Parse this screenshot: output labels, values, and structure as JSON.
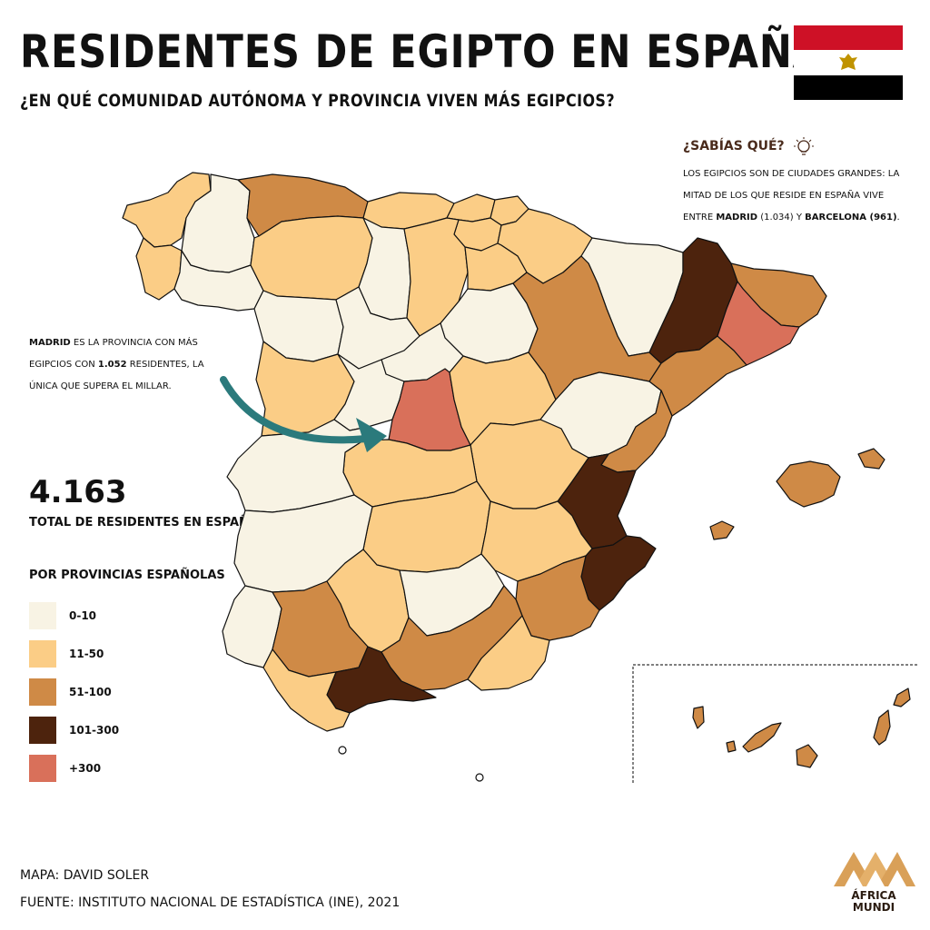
{
  "title": "RESIDENTES DE EGIPTO EN ESPAÑA",
  "subtitle": "¿EN QUÉ COMUNIDAD AUTÓNOMA Y PROVINCIA VIVEN MÁS EGIPCIOS?",
  "sabias": {
    "heading": "¿SABÍAS QUÉ?",
    "text_1": "LOS EGIPCIOS SON DE CIUDADES GRANDES: LA MITAD DE LOS QUE RESIDE EN ESPAÑA VIVE ENTRE ",
    "madrid": "MADRID",
    "madrid_value": " (1.034) Y ",
    "barcelona": "BARCELONA (961)",
    "end": "."
  },
  "madrid_note": {
    "name": "MADRID",
    "text_1": " ES LA PROVINCIA CON MÁS EGIPCIOS CON ",
    "value": "1.052",
    "text_2": " RESIDENTES, LA ÚNICA QUE SUPERA EL MILLAR."
  },
  "total": {
    "value": "4.163",
    "label": "TOTAL DE RESIDENTES EN ESPAÑA"
  },
  "legend": {
    "title": "POR PROVINCIAS ESPAÑOLAS",
    "items": [
      {
        "label": "0-10",
        "color": "#f8f3e4"
      },
      {
        "label": "11-50",
        "color": "#fbcd86"
      },
      {
        "label": "51-100",
        "color": "#cf8a46"
      },
      {
        "label": "101-300",
        "color": "#4d230d"
      },
      {
        "label": "+300",
        "color": "#d9705a"
      }
    ]
  },
  "credits": {
    "map": "MAPA: DAVID SOLER",
    "source": "FUENTE: INSTITUTO NACIONAL DE ESTADÍSTICA (INE), 2021"
  },
  "logo": {
    "line1": "ÁFRICA",
    "line2": "MUNDI"
  },
  "flag": {
    "colors": [
      "#ce1126",
      "#ffffff",
      "#000000"
    ],
    "emblem_color": "#c09300"
  },
  "arrow_color": "#2b7a7c",
  "map_data": {
    "provinces": [
      {
        "name": "A Coruña",
        "bin": "11-50"
      },
      {
        "name": "Lugo",
        "bin": "0-10"
      },
      {
        "name": "Asturias",
        "bin": "51-100"
      },
      {
        "name": "Cantabria",
        "bin": "11-50"
      },
      {
        "name": "Pontevedra",
        "bin": "11-50"
      },
      {
        "name": "Ourense",
        "bin": "0-10"
      },
      {
        "name": "León",
        "bin": "11-50"
      },
      {
        "name": "Palencia",
        "bin": "0-10"
      },
      {
        "name": "Burgos",
        "bin": "11-50"
      },
      {
        "name": "Bizkaia",
        "bin": "11-50"
      },
      {
        "name": "Gipuzkoa",
        "bin": "11-50"
      },
      {
        "name": "Araba",
        "bin": "11-50"
      },
      {
        "name": "Navarra",
        "bin": "11-50"
      },
      {
        "name": "La Rioja",
        "bin": "11-50"
      },
      {
        "name": "Huesca",
        "bin": "0-10"
      },
      {
        "name": "Lleida",
        "bin": "101-300"
      },
      {
        "name": "Girona",
        "bin": "51-100"
      },
      {
        "name": "Barcelona",
        "bin": "+300"
      },
      {
        "name": "Zaragoza",
        "bin": "51-100"
      },
      {
        "name": "Tarragona",
        "bin": "51-100"
      },
      {
        "name": "Zamora",
        "bin": "0-10"
      },
      {
        "name": "Valladolid",
        "bin": "0-10"
      },
      {
        "name": "Soria",
        "bin": "0-10"
      },
      {
        "name": "Salamanca",
        "bin": "11-50"
      },
      {
        "name": "Ávila",
        "bin": "0-10"
      },
      {
        "name": "Segovia",
        "bin": "0-10"
      },
      {
        "name": "Madrid",
        "bin": "+300"
      },
      {
        "name": "Guadalajara",
        "bin": "11-50"
      },
      {
        "name": "Teruel",
        "bin": "0-10"
      },
      {
        "name": "Castellón",
        "bin": "51-100"
      },
      {
        "name": "Cáceres",
        "bin": "0-10"
      },
      {
        "name": "Toledo",
        "bin": "11-50"
      },
      {
        "name": "Cuenca",
        "bin": "11-50"
      },
      {
        "name": "Valencia",
        "bin": "101-300"
      },
      {
        "name": "Badajoz",
        "bin": "0-10"
      },
      {
        "name": "Ciudad Real",
        "bin": "11-50"
      },
      {
        "name": "Albacete",
        "bin": "11-50"
      },
      {
        "name": "Alicante",
        "bin": "101-300"
      },
      {
        "name": "Huelva",
        "bin": "0-10"
      },
      {
        "name": "Sevilla",
        "bin": "51-100"
      },
      {
        "name": "Córdoba",
        "bin": "11-50"
      },
      {
        "name": "Jaén",
        "bin": "0-10"
      },
      {
        "name": "Murcia",
        "bin": "51-100"
      },
      {
        "name": "Granada",
        "bin": "51-100"
      },
      {
        "name": "Almería",
        "bin": "11-50"
      },
      {
        "name": "Cádiz",
        "bin": "11-50"
      },
      {
        "name": "Málaga",
        "bin": "101-300"
      },
      {
        "name": "Mallorca",
        "bin": "51-100"
      },
      {
        "name": "Menorca",
        "bin": "51-100"
      },
      {
        "name": "Ibiza",
        "bin": "51-100"
      },
      {
        "name": "Las Palmas",
        "bin": "51-100"
      },
      {
        "name": "Santa Cruz de Tenerife",
        "bin": "51-100"
      }
    ]
  }
}
